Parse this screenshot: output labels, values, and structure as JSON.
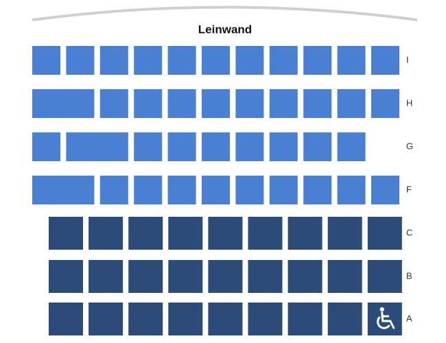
{
  "screen": {
    "label": "Leinwand"
  },
  "rows": [
    {
      "label": "I"
    },
    {
      "label": "H"
    },
    {
      "label": "G"
    },
    {
      "label": "F"
    },
    {
      "label": "C"
    },
    {
      "label": "B"
    },
    {
      "label": "A"
    }
  ]
}
